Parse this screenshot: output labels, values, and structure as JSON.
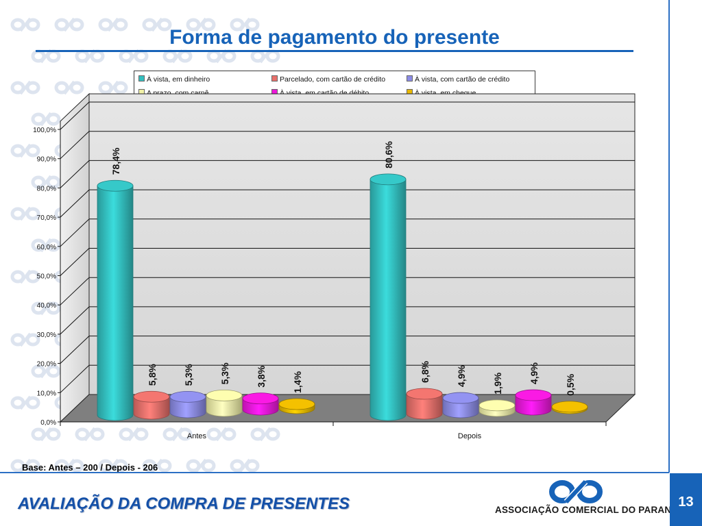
{
  "slide": {
    "title": "Forma de pagamento do presente",
    "base_note": "Base: Antes – 200 / Depois - 206",
    "footer_title": "AVALIAÇÃO DA COMPRA DE PRESENTES",
    "org_name": "ASSOCIAÇÃO COMERCIAL DO PARANÁ",
    "page_number": "13"
  },
  "colors": {
    "accent_blue": "#1763b8",
    "footer_text": "#1450a8",
    "watermark": "#dde4ef"
  },
  "chart_data": {
    "type": "bar",
    "style": "3d-cylinder",
    "title": "",
    "xlabel": "",
    "ylabel": "",
    "categories": [
      "Antes",
      "Depois"
    ],
    "ylim": [
      0,
      100
    ],
    "y_ticks": [
      "0,0%",
      "10,0%",
      "20,0%",
      "30,0%",
      "40,0%",
      "50,0%",
      "60,0%",
      "70,0%",
      "80,0%",
      "90,0%",
      "100,0%"
    ],
    "grid": true,
    "legend_position": "top",
    "series": [
      {
        "name": "À vista, em dinheiro",
        "color": "#33bfbf",
        "values": [
          78.4,
          80.6
        ],
        "labels": [
          "78,4%",
          "80,6%"
        ]
      },
      {
        "name": "Parcelado, com cartão de crédito",
        "color": "#e8706b",
        "values": [
          5.8,
          6.8
        ],
        "labels": [
          "5,8%",
          "6,8%"
        ]
      },
      {
        "name": "À vista, com cartão de crédito",
        "color": "#8c8ce6",
        "values": [
          5.3,
          4.9
        ],
        "labels": [
          "5,3%",
          "4,9%"
        ]
      },
      {
        "name": "A prazo, com carnê",
        "color": "#f2f2a8",
        "values": [
          5.3,
          1.9
        ],
        "labels": [
          "5,3%",
          "1,9%"
        ]
      },
      {
        "name": "À vista, em cartão de débito",
        "color": "#ee19d9",
        "values": [
          3.8,
          4.9
        ],
        "labels": [
          "3,8%",
          "4,9%"
        ]
      },
      {
        "name": "À vista, em cheque",
        "color": "#e8b800",
        "values": [
          1.4,
          0.5
        ],
        "labels": [
          "1,4%",
          "0,5%"
        ]
      }
    ]
  }
}
